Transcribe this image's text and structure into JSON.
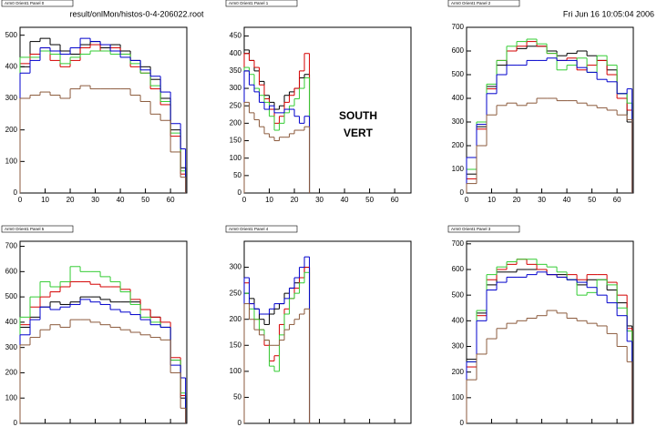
{
  "header": {
    "file": "result/onlMon/histos-0-4-206022.root",
    "date": "Fri Jun 16 10:05:04 2006"
  },
  "labels": [
    "SOUTH",
    "VERT"
  ],
  "chart_data": [
    {
      "type": "histogram",
      "title": "Arm0 Orient1 Panel 0",
      "bins": [
        0,
        4,
        8,
        12,
        16,
        20,
        24,
        28,
        32,
        36,
        40,
        44,
        48,
        52,
        56,
        60,
        64,
        66
      ],
      "xlim": [
        0,
        66.5
      ],
      "xticks": [
        0,
        10,
        20,
        30,
        40,
        50,
        60
      ],
      "ylim": [
        0,
        525
      ],
      "yticks": [
        0,
        100,
        200,
        300,
        400,
        500
      ],
      "series": [
        {
          "color": "#000000",
          "values": [
            400,
            480,
            490,
            470,
            450,
            440,
            470,
            480,
            460,
            470,
            450,
            420,
            400,
            360,
            300,
            200,
            80
          ]
        },
        {
          "color": "#d40000",
          "values": [
            410,
            440,
            460,
            420,
            400,
            420,
            460,
            470,
            450,
            460,
            440,
            400,
            380,
            330,
            280,
            180,
            60
          ]
        },
        {
          "color": "#33cc33",
          "values": [
            430,
            430,
            450,
            440,
            410,
            430,
            440,
            450,
            450,
            440,
            440,
            410,
            380,
            340,
            290,
            190,
            70
          ]
        },
        {
          "color": "#0000cc",
          "values": [
            380,
            420,
            460,
            450,
            440,
            460,
            490,
            480,
            470,
            450,
            430,
            420,
            390,
            370,
            320,
            220,
            140
          ]
        },
        {
          "color": "#8b5a3c",
          "values": [
            300,
            310,
            320,
            310,
            300,
            330,
            340,
            330,
            330,
            330,
            330,
            310,
            290,
            250,
            230,
            130,
            50
          ]
        }
      ]
    },
    {
      "type": "histogram",
      "title": "Arm0 Orient1 Panel 1",
      "bins": [
        0,
        2,
        4,
        6,
        8,
        10,
        12,
        14,
        16,
        18,
        20,
        22,
        24,
        26
      ],
      "xlim": [
        0,
        66.5
      ],
      "xticks": [
        0,
        10,
        20,
        30,
        40,
        50,
        60
      ],
      "ylim": [
        0,
        475
      ],
      "yticks": [
        0,
        50,
        100,
        150,
        200,
        250,
        300,
        350,
        400,
        450
      ],
      "series": [
        {
          "color": "#000000",
          "values": [
            410,
            380,
            350,
            320,
            280,
            260,
            240,
            250,
            280,
            290,
            300,
            330,
            340
          ]
        },
        {
          "color": "#d40000",
          "values": [
            400,
            380,
            360,
            310,
            270,
            240,
            200,
            220,
            260,
            280,
            300,
            350,
            400
          ]
        },
        {
          "color": "#33cc33",
          "values": [
            360,
            340,
            300,
            280,
            260,
            220,
            180,
            200,
            230,
            250,
            270,
            300,
            330
          ]
        },
        {
          "color": "#0000cc",
          "values": [
            350,
            310,
            290,
            260,
            240,
            250,
            230,
            230,
            240,
            240,
            220,
            200,
            220
          ]
        },
        {
          "color": "#8b5a3c",
          "values": [
            260,
            230,
            210,
            190,
            170,
            160,
            150,
            160,
            160,
            170,
            180,
            180,
            190
          ]
        }
      ]
    },
    {
      "type": "histogram",
      "title": "Arm0 Orient1 Panel 2",
      "bins": [
        0,
        4,
        8,
        12,
        16,
        20,
        24,
        28,
        32,
        36,
        40,
        44,
        48,
        52,
        56,
        60,
        64,
        66
      ],
      "xlim": [
        0,
        66.5
      ],
      "xticks": [
        0,
        10,
        20,
        30,
        40,
        50,
        60
      ],
      "ylim": [
        0,
        700
      ],
      "yticks": [
        0,
        100,
        200,
        300,
        400,
        500,
        600,
        700
      ],
      "series": [
        {
          "color": "#000000",
          "values": [
            80,
            280,
            450,
            540,
            600,
            610,
            620,
            620,
            600,
            580,
            590,
            600,
            580,
            560,
            520,
            420,
            300
          ]
        },
        {
          "color": "#d40000",
          "values": [
            60,
            270,
            440,
            560,
            600,
            620,
            640,
            620,
            590,
            560,
            570,
            520,
            540,
            560,
            500,
            400,
            350
          ]
        },
        {
          "color": "#33cc33",
          "values": [
            100,
            300,
            460,
            560,
            620,
            640,
            650,
            630,
            590,
            520,
            540,
            570,
            510,
            580,
            540,
            420,
            380
          ]
        },
        {
          "color": "#0000cc",
          "values": [
            150,
            290,
            420,
            500,
            540,
            540,
            560,
            560,
            570,
            560,
            560,
            530,
            510,
            480,
            470,
            420,
            440
          ]
        },
        {
          "color": "#8b5a3c",
          "values": [
            40,
            200,
            330,
            370,
            380,
            370,
            380,
            400,
            400,
            390,
            390,
            380,
            370,
            360,
            350,
            330,
            310
          ]
        }
      ]
    },
    {
      "type": "histogram",
      "title": "Arm0 Orient1 Panel 5",
      "bins": [
        0,
        4,
        8,
        12,
        16,
        20,
        24,
        28,
        32,
        36,
        40,
        44,
        48,
        52,
        56,
        60,
        64,
        66
      ],
      "xlim": [
        0,
        66.5
      ],
      "xticks": [
        0,
        10,
        20,
        30,
        40,
        50,
        60
      ],
      "ylim": [
        0,
        720
      ],
      "yticks": [
        0,
        100,
        200,
        300,
        400,
        500,
        600,
        700
      ],
      "series": [
        {
          "color": "#000000",
          "values": [
            380,
            420,
            460,
            480,
            470,
            480,
            500,
            500,
            490,
            480,
            480,
            480,
            450,
            420,
            380,
            250,
            100
          ]
        },
        {
          "color": "#d40000",
          "values": [
            390,
            460,
            500,
            520,
            540,
            560,
            560,
            550,
            540,
            540,
            530,
            490,
            450,
            420,
            400,
            260,
            110
          ]
        },
        {
          "color": "#33cc33",
          "values": [
            420,
            500,
            560,
            540,
            560,
            620,
            600,
            600,
            580,
            560,
            520,
            470,
            420,
            400,
            380,
            250,
            120
          ]
        },
        {
          "color": "#0000cc",
          "values": [
            350,
            410,
            460,
            450,
            460,
            470,
            490,
            480,
            470,
            450,
            440,
            430,
            410,
            390,
            380,
            230,
            180
          ]
        },
        {
          "color": "#8b5a3c",
          "values": [
            310,
            340,
            370,
            390,
            380,
            410,
            410,
            400,
            390,
            380,
            370,
            360,
            350,
            340,
            330,
            200,
            60
          ]
        }
      ]
    },
    {
      "type": "histogram",
      "title": "Arm0 Orient1 Panel 4",
      "bins": [
        0,
        2,
        4,
        6,
        8,
        10,
        12,
        14,
        16,
        18,
        20,
        22,
        24,
        26
      ],
      "xlim": [
        0,
        66.5
      ],
      "xticks": [
        0,
        10,
        20,
        30,
        40,
        50,
        60
      ],
      "ylim": [
        0,
        350
      ],
      "yticks": [
        0,
        50,
        100,
        150,
        200,
        250,
        300
      ],
      "series": [
        {
          "color": "#000000",
          "values": [
            250,
            240,
            220,
            200,
            190,
            210,
            220,
            230,
            250,
            260,
            270,
            280,
            300
          ]
        },
        {
          "color": "#d40000",
          "values": [
            270,
            230,
            200,
            180,
            150,
            120,
            130,
            190,
            220,
            240,
            260,
            280,
            300
          ]
        },
        {
          "color": "#33cc33",
          "values": [
            250,
            220,
            200,
            180,
            160,
            110,
            100,
            170,
            210,
            240,
            250,
            270,
            290
          ]
        },
        {
          "color": "#0000cc",
          "values": [
            280,
            230,
            220,
            210,
            210,
            220,
            230,
            230,
            240,
            260,
            280,
            300,
            320
          ]
        },
        {
          "color": "#8b5a3c",
          "values": [
            230,
            200,
            180,
            170,
            160,
            150,
            150,
            160,
            180,
            190,
            200,
            210,
            220
          ]
        }
      ]
    },
    {
      "type": "histogram",
      "title": "Arm0 Orient1 Panel 3",
      "bins": [
        0,
        4,
        8,
        12,
        16,
        20,
        24,
        28,
        32,
        36,
        40,
        44,
        48,
        52,
        56,
        60,
        64,
        66
      ],
      "xlim": [
        0,
        66.5
      ],
      "xticks": [
        0,
        10,
        20,
        30,
        40,
        50,
        60
      ],
      "ylim": [
        0,
        710
      ],
      "yticks": [
        0,
        100,
        200,
        300,
        400,
        500,
        600,
        700
      ],
      "series": [
        {
          "color": "#000000",
          "values": [
            250,
            430,
            540,
            590,
            590,
            600,
            600,
            600,
            580,
            580,
            560,
            540,
            560,
            560,
            520,
            470,
            380
          ]
        },
        {
          "color": "#d40000",
          "values": [
            220,
            420,
            560,
            600,
            620,
            640,
            620,
            600,
            580,
            570,
            580,
            560,
            580,
            580,
            550,
            500,
            370
          ]
        },
        {
          "color": "#33cc33",
          "values": [
            240,
            440,
            580,
            610,
            630,
            640,
            640,
            620,
            610,
            590,
            560,
            500,
            510,
            560,
            540,
            450,
            360
          ]
        },
        {
          "color": "#0000cc",
          "values": [
            240,
            400,
            520,
            550,
            570,
            570,
            580,
            590,
            580,
            570,
            560,
            550,
            530,
            500,
            470,
            420,
            320
          ]
        },
        {
          "color": "#8b5a3c",
          "values": [
            170,
            270,
            330,
            370,
            390,
            400,
            410,
            420,
            440,
            430,
            410,
            400,
            390,
            380,
            350,
            300,
            240
          ]
        }
      ]
    }
  ]
}
